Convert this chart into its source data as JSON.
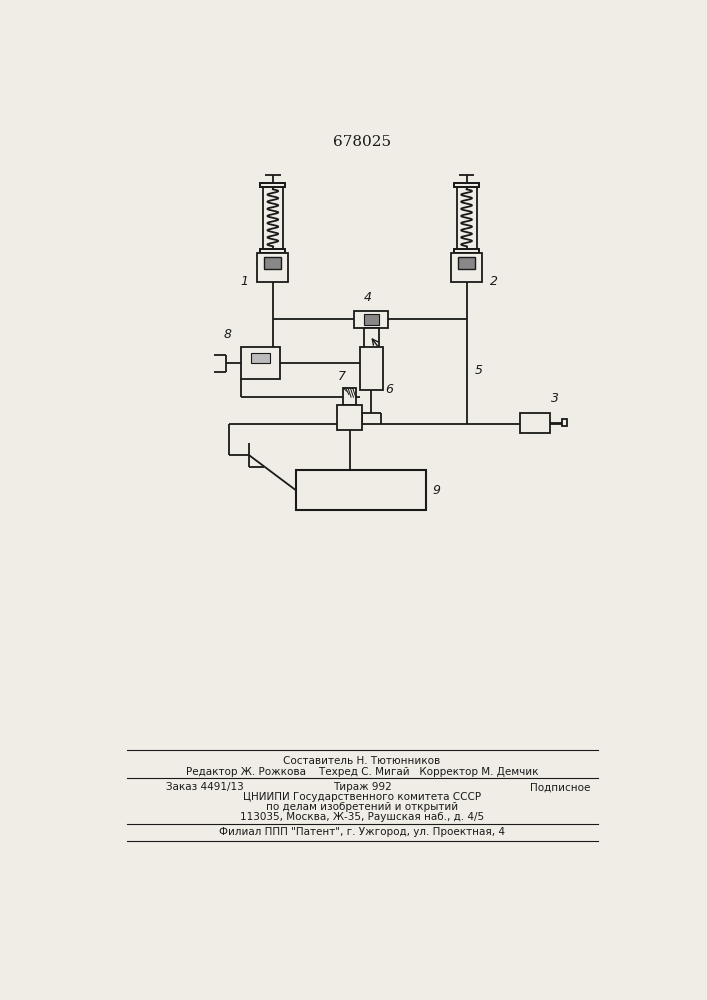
{
  "title": "678025",
  "title_fontsize": 11,
  "bg_color": "#f0ede6",
  "line_color": "#1a1a1a",
  "footer_lines": [
    "Составитель Н. Тютюнников",
    "Редактор Ж. Рожкова    Техред С. Мигай   Корректор М. Демчик",
    "Заказ 4491/13               Тираж 992          Подписное",
    "ЦНИИПИ Государственного комитета СССР",
    "по делам изобретений и открытий",
    "113035, Москва, Ж-35, Раушская наб., д. 4/5",
    "Филиал ППП \"Патент\", г. Ужгород, ул. Проектная, 4"
  ]
}
